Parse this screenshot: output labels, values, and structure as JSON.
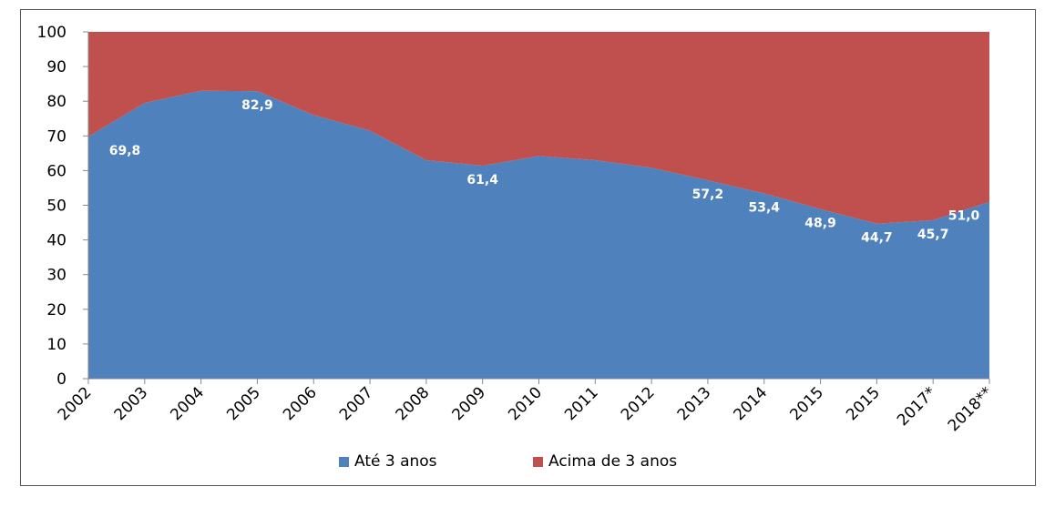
{
  "chart_data": {
    "type": "area",
    "stacked": true,
    "categories": [
      "2002",
      "2003",
      "2004",
      "2005",
      "2006",
      "2007",
      "2008",
      "2009",
      "2010",
      "2011",
      "2012",
      "2013",
      "2014",
      "2015",
      "2015",
      "2017*",
      "2018**"
    ],
    "series": [
      {
        "name": "Até 3 anos",
        "color": "#4f81bd",
        "values": [
          69.8,
          79.5,
          83.0,
          82.9,
          76.0,
          71.5,
          63.0,
          61.4,
          64.2,
          63.0,
          60.8,
          57.2,
          53.4,
          48.9,
          44.7,
          45.7,
          51.0
        ]
      },
      {
        "name": "Acima de 3 anos",
        "color": "#c0504d",
        "values": [
          30.2,
          20.5,
          17.0,
          17.1,
          24.0,
          28.5,
          37.0,
          38.6,
          35.8,
          37.0,
          39.2,
          42.8,
          46.6,
          51.1,
          55.3,
          54.3,
          49.0
        ]
      }
    ],
    "data_labels": [
      {
        "index": 0,
        "text": "69,8"
      },
      {
        "index": 3,
        "text": "82,9"
      },
      {
        "index": 7,
        "text": "61,4"
      },
      {
        "index": 11,
        "text": "57,2"
      },
      {
        "index": 12,
        "text": "53,4"
      },
      {
        "index": 13,
        "text": "48,9"
      },
      {
        "index": 14,
        "text": "44,7"
      },
      {
        "index": 15,
        "text": "45,7"
      },
      {
        "index": 16,
        "text": "51,0"
      }
    ],
    "yticks": [
      "0",
      "10",
      "20",
      "30",
      "40",
      "50",
      "60",
      "70",
      "80",
      "90",
      "100"
    ],
    "ylim": [
      0,
      100
    ],
    "title": "",
    "xlabel": "",
    "ylabel": "",
    "legend": "bottom"
  }
}
